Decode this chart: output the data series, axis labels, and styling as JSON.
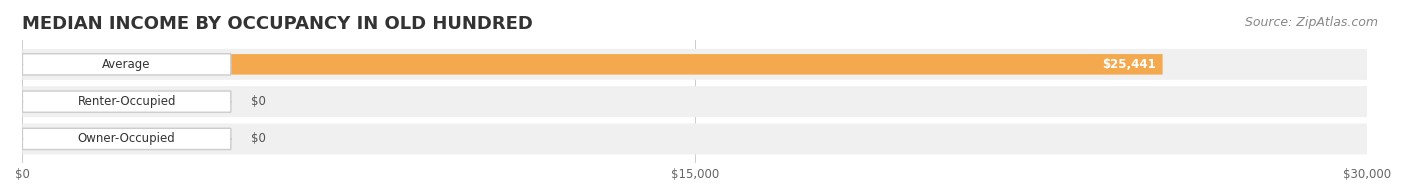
{
  "title": "MEDIAN INCOME BY OCCUPANCY IN OLD HUNDRED",
  "source": "Source: ZipAtlas.com",
  "categories": [
    "Owner-Occupied",
    "Renter-Occupied",
    "Average"
  ],
  "values": [
    0,
    0,
    25441
  ],
  "bar_colors": [
    "#6dcfcf",
    "#c9a8d4",
    "#f5a94e"
  ],
  "bg_track_color": "#f0f0f0",
  "label_colors": [
    "#555555",
    "#555555",
    "#ffffff"
  ],
  "value_labels": [
    "$0",
    "$0",
    "$25,441"
  ],
  "xlim": [
    0,
    30000
  ],
  "xticks": [
    0,
    15000,
    30000
  ],
  "xtick_labels": [
    "$0",
    "$15,000",
    "$30,000"
  ],
  "title_fontsize": 13,
  "source_fontsize": 9,
  "bar_height": 0.55,
  "figsize": [
    14.06,
    1.96
  ],
  "dpi": 100,
  "background_color": "#ffffff"
}
